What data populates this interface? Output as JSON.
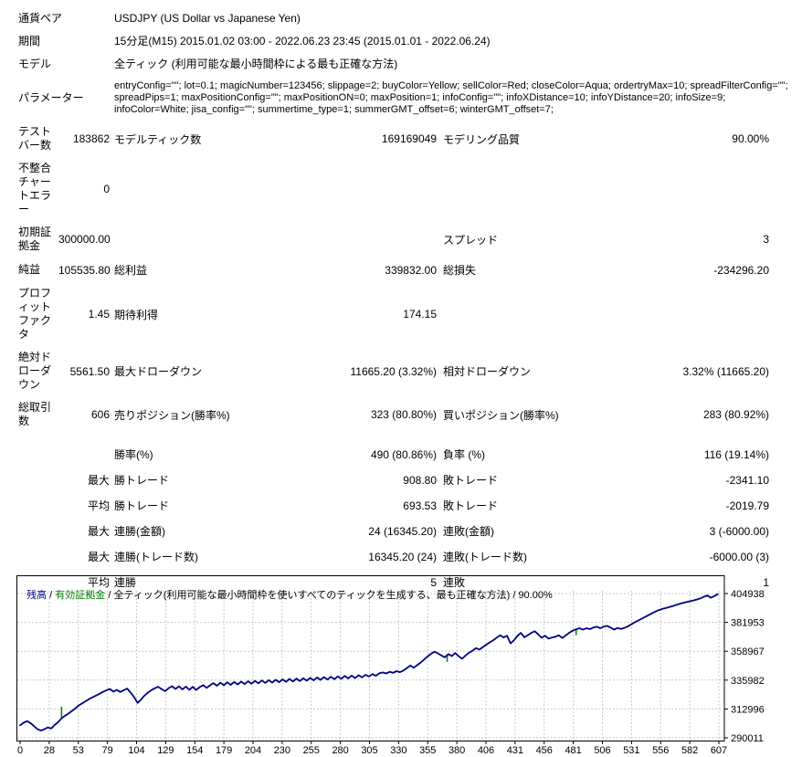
{
  "report": {
    "rows": [
      {
        "label": "通貨ペア",
        "wide": "USDJPY (US Dollar vs Japanese Yen)"
      },
      {
        "label": "期間",
        "wide": "15分足(M15) 2015.01.02 03:00 - 2022.06.23 23:45 (2015.01.01 - 2022.06.24)"
      },
      {
        "label": "モデル",
        "wide": "全ティック (利用可能な最小時間枠による最も正確な方法)"
      },
      {
        "label": "パラメーター",
        "wide": "entryConfig=\"\"; lot=0.1; magicNumber=123456; slippage=2; buyColor=Yellow; sellColor=Red; closeColor=Aqua; ordertryMax=10; spreadFilterConfig=\"\"; spreadPips=1; maxPositionConfig=\"\"; maxPositionON=0; maxPosition=1; infoConfig=\"\"; infoXDistance=10; infoYDistance=20; infoSize=9; infoColor=White; jisa_config=\"\"; summertime_type=1; summerGMT_offset=6; winterGMT_offset=7;"
      },
      {
        "label": "テスト\nバー数",
        "v1": "183862",
        "l2": "モデルティック数",
        "v2": "169169049",
        "l3": "モデリング品質",
        "v3": "90.00%"
      },
      {
        "label": "不整合\nチャー\nトエラ\nー",
        "v1": "0",
        "l2": "",
        "v2": "",
        "l3": "",
        "v3": ""
      },
      {
        "label": "初期証\n拠金",
        "v1": "300000.00",
        "l2": "",
        "v2": "",
        "l3": "スプレッド",
        "v3": "3"
      },
      {
        "label": "純益",
        "v1": "105535.80",
        "l2": "総利益",
        "v2": "339832.00",
        "l3": "総損失",
        "v3": "-234296.20"
      },
      {
        "label": "プロフ\nィット\nファク\nタ",
        "v1": "1.45",
        "l2": "期待利得",
        "v2": "174.15",
        "l3": "",
        "v3": ""
      },
      {
        "label": "絶対ド\nローダ\nウン",
        "v1": "5561.50",
        "l2": "最大ドローダウン",
        "v2": "11665.20 (3.32%)",
        "l3": "相対ドローダウン",
        "v3": "3.32% (11665.20)"
      },
      {
        "label": "総取引\n数",
        "v1": "606",
        "l2": "売りポジション(勝率%)",
        "v2": "323 (80.80%)",
        "l3": "買いポジション(勝率%)",
        "v3": "283 (80.92%)"
      },
      {
        "label": "",
        "v1": "",
        "l2": "勝率(%)",
        "v2": "490 (80.86%)",
        "l3": "負率 (%)",
        "v3": "116 (19.14%)"
      },
      {
        "label": "",
        "v1": "最大",
        "l2": "勝トレード",
        "v2": "908.80",
        "l3": "敗トレード",
        "v3": "-2341.10"
      },
      {
        "label": "",
        "v1": "平均",
        "l2": "勝トレード",
        "v2": "693.53",
        "l3": "敗トレード",
        "v3": "-2019.79"
      },
      {
        "label": "",
        "v1": "最大",
        "l2": "連勝(金額)",
        "v2": "24 (16345.20)",
        "l3": "連敗(金額)",
        "v3": "3 (-6000.00)"
      },
      {
        "label": "",
        "v1": "最大",
        "l2": "連勝(トレード数)",
        "v2": "16345.20 (24)",
        "l3": "連敗(トレード数)",
        "v3": "-6000.00 (3)"
      },
      {
        "label": "",
        "v1": "平均",
        "l2": "連勝",
        "v2": "5",
        "l3": "連敗",
        "v3": "1"
      }
    ]
  },
  "chart": {
    "header": {
      "balance_label": "残高",
      "equity_label": "有効証拠金",
      "model_label": "全ティック(利用可能な最小時間枠を使いすべてのティックを生成する、最も正確な方法)",
      "quality": "90.00%",
      "separator": " / "
    }
  },
  "chart_data": {
    "type": "line",
    "title": "残高 / 有効証拠金 / 全ティック(利用可能な最小時間枠を使いすべてのティックを生成する、最も正確な方法) / 90.00%",
    "xlabel": "",
    "ylabel": "",
    "x_ticks": [
      0,
      28,
      53,
      79,
      104,
      129,
      154,
      179,
      204,
      230,
      255,
      280,
      305,
      330,
      355,
      380,
      406,
      431,
      456,
      481,
      506,
      531,
      556,
      582,
      607
    ],
    "y_ticks": [
      290011,
      312996,
      335982,
      358967,
      381953,
      404938
    ],
    "xlim": [
      0,
      611
    ],
    "ylim": [
      290011,
      404938
    ],
    "grid": true,
    "legend_position": "top-left",
    "balance": {
      "name": "残高",
      "color": "#000080",
      "points": [
        [
          0,
          300000
        ],
        [
          3,
          302000
        ],
        [
          6,
          303300
        ],
        [
          9,
          301800
        ],
        [
          12,
          299500
        ],
        [
          15,
          297000
        ],
        [
          18,
          295800
        ],
        [
          21,
          296800
        ],
        [
          24,
          298300
        ],
        [
          27,
          297400
        ],
        [
          30,
          300200
        ],
        [
          33,
          302500
        ],
        [
          36,
          305500
        ],
        [
          39,
          307600
        ],
        [
          42,
          309300
        ],
        [
          45,
          311400
        ],
        [
          48,
          313500
        ],
        [
          51,
          315800
        ],
        [
          54,
          317500
        ],
        [
          57,
          319200
        ],
        [
          60,
          320900
        ],
        [
          63,
          322300
        ],
        [
          66,
          323700
        ],
        [
          69,
          325100
        ],
        [
          72,
          326600
        ],
        [
          75,
          327900
        ],
        [
          78,
          328900
        ],
        [
          81,
          326800
        ],
        [
          84,
          328200
        ],
        [
          87,
          326500
        ],
        [
          90,
          327900
        ],
        [
          93,
          329300
        ],
        [
          96,
          326000
        ],
        [
          99,
          322500
        ],
        [
          102,
          317800
        ],
        [
          105,
          320400
        ],
        [
          108,
          323600
        ],
        [
          111,
          326000
        ],
        [
          114,
          328000
        ],
        [
          117,
          329500
        ],
        [
          120,
          330700
        ],
        [
          123,
          328800
        ],
        [
          126,
          327200
        ],
        [
          129,
          329600
        ],
        [
          132,
          331200
        ],
        [
          135,
          328900
        ],
        [
          138,
          331000
        ],
        [
          141,
          328600
        ],
        [
          144,
          330800
        ],
        [
          147,
          328300
        ],
        [
          150,
          330600
        ],
        [
          153,
          328100
        ],
        [
          156,
          330400
        ],
        [
          159,
          332000
        ],
        [
          162,
          329800
        ],
        [
          165,
          331800
        ],
        [
          168,
          333600
        ],
        [
          171,
          331500
        ],
        [
          174,
          333900
        ],
        [
          177,
          331900
        ],
        [
          180,
          334200
        ],
        [
          183,
          332200
        ],
        [
          186,
          334500
        ],
        [
          189,
          332500
        ],
        [
          192,
          334800
        ],
        [
          195,
          332800
        ],
        [
          198,
          335100
        ],
        [
          201,
          333100
        ],
        [
          204,
          335400
        ],
        [
          207,
          333400
        ],
        [
          210,
          335700
        ],
        [
          213,
          333700
        ],
        [
          216,
          336000
        ],
        [
          219,
          334000
        ],
        [
          222,
          336300
        ],
        [
          225,
          334300
        ],
        [
          228,
          336600
        ],
        [
          231,
          334600
        ],
        [
          234,
          336900
        ],
        [
          237,
          334900
        ],
        [
          240,
          337200
        ],
        [
          243,
          335200
        ],
        [
          246,
          337500
        ],
        [
          249,
          335500
        ],
        [
          252,
          337800
        ],
        [
          255,
          335800
        ],
        [
          258,
          338100
        ],
        [
          261,
          336100
        ],
        [
          264,
          338400
        ],
        [
          267,
          336400
        ],
        [
          270,
          338700
        ],
        [
          273,
          336700
        ],
        [
          276,
          339000
        ],
        [
          279,
          337000
        ],
        [
          282,
          339300
        ],
        [
          285,
          337300
        ],
        [
          288,
          339600
        ],
        [
          291,
          337600
        ],
        [
          294,
          339900
        ],
        [
          297,
          338200
        ],
        [
          300,
          340200
        ],
        [
          303,
          338800
        ],
        [
          306,
          340800
        ],
        [
          309,
          339400
        ],
        [
          312,
          341400
        ],
        [
          315,
          342100
        ],
        [
          318,
          341300
        ],
        [
          321,
          342600
        ],
        [
          324,
          341800
        ],
        [
          327,
          343100
        ],
        [
          330,
          342300
        ],
        [
          333,
          343600
        ],
        [
          336,
          345600
        ],
        [
          339,
          347600
        ],
        [
          342,
          345900
        ],
        [
          345,
          347900
        ],
        [
          348,
          350000
        ],
        [
          351,
          352400
        ],
        [
          354,
          354800
        ],
        [
          357,
          356900
        ],
        [
          360,
          358600
        ],
        [
          363,
          357200
        ],
        [
          366,
          355600
        ],
        [
          369,
          354200
        ],
        [
          372,
          356700
        ],
        [
          375,
          355200
        ],
        [
          378,
          357600
        ],
        [
          381,
          355000
        ],
        [
          384,
          353000
        ],
        [
          387,
          355600
        ],
        [
          390,
          357800
        ],
        [
          393,
          359400
        ],
        [
          396,
          361500
        ],
        [
          399,
          360300
        ],
        [
          402,
          362300
        ],
        [
          405,
          364200
        ],
        [
          408,
          366000
        ],
        [
          411,
          367800
        ],
        [
          414,
          369800
        ],
        [
          417,
          371700
        ],
        [
          420,
          370000
        ],
        [
          423,
          371300
        ],
        [
          426,
          365200
        ],
        [
          429,
          367700
        ],
        [
          432,
          371200
        ],
        [
          435,
          373600
        ],
        [
          438,
          370100
        ],
        [
          441,
          371800
        ],
        [
          444,
          373600
        ],
        [
          447,
          374900
        ],
        [
          450,
          372500
        ],
        [
          453,
          369700
        ],
        [
          456,
          371300
        ],
        [
          459,
          369000
        ],
        [
          462,
          369900
        ],
        [
          465,
          370600
        ],
        [
          468,
          371700
        ],
        [
          471,
          369500
        ],
        [
          474,
          371600
        ],
        [
          477,
          373700
        ],
        [
          480,
          375300
        ],
        [
          483,
          376400
        ],
        [
          486,
          377300
        ],
        [
          489,
          376100
        ],
        [
          492,
          377400
        ],
        [
          495,
          376600
        ],
        [
          498,
          377900
        ],
        [
          501,
          378500
        ],
        [
          504,
          377300
        ],
        [
          507,
          378700
        ],
        [
          510,
          379200
        ],
        [
          513,
          377800
        ],
        [
          516,
          376200
        ],
        [
          519,
          377500
        ],
        [
          522,
          376800
        ],
        [
          525,
          377600
        ],
        [
          528,
          378800
        ],
        [
          531,
          380400
        ],
        [
          534,
          382000
        ],
        [
          537,
          383400
        ],
        [
          540,
          384900
        ],
        [
          543,
          386300
        ],
        [
          546,
          387800
        ],
        [
          549,
          389200
        ],
        [
          552,
          390600
        ],
        [
          555,
          391800
        ],
        [
          558,
          392700
        ],
        [
          561,
          393400
        ],
        [
          564,
          394200
        ],
        [
          567,
          395000
        ],
        [
          570,
          395900
        ],
        [
          573,
          396700
        ],
        [
          576,
          397500
        ],
        [
          579,
          398200
        ],
        [
          582,
          398800
        ],
        [
          585,
          399500
        ],
        [
          588,
          400200
        ],
        [
          591,
          401100
        ],
        [
          594,
          402300
        ],
        [
          597,
          403500
        ],
        [
          600,
          401600
        ],
        [
          603,
          402900
        ],
        [
          606,
          404500
        ]
      ]
    },
    "equity": {
      "name": "有効証拠金",
      "color": "#008000",
      "spikes": [
        {
          "t": 36,
          "from": 305500,
          "to": 314800
        },
        {
          "t": 371,
          "from": 355800,
          "to": 350500
        },
        {
          "t": 483,
          "from": 376400,
          "to": 371800
        }
      ]
    }
  }
}
